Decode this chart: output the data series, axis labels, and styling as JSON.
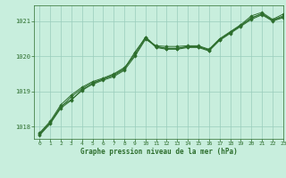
{
  "title": "Graphe pression niveau de la mer (hPa)",
  "background_color": "#c8eedd",
  "grid_color": "#99ccbb",
  "line_color": "#2d6e2d",
  "spine_color": "#2d6e2d",
  "xlim": [
    -0.5,
    23
  ],
  "ylim": [
    1017.65,
    1021.45
  ],
  "yticks": [
    1018,
    1019,
    1020,
    1021
  ],
  "xticks": [
    0,
    1,
    2,
    3,
    4,
    5,
    6,
    7,
    8,
    9,
    10,
    11,
    12,
    13,
    14,
    15,
    16,
    17,
    18,
    19,
    20,
    21,
    22,
    23
  ],
  "series": [
    [
      1017.78,
      1018.12,
      1018.57,
      1018.77,
      1019.02,
      1019.22,
      1019.35,
      1019.45,
      1019.63,
      1020.08,
      1020.55,
      1020.28,
      1020.23,
      1020.23,
      1020.28,
      1020.28,
      1020.18,
      1020.48,
      1020.68,
      1020.88,
      1021.08,
      1021.22,
      1021.02,
      1021.12
    ],
    [
      1017.82,
      1018.15,
      1018.62,
      1018.9,
      1019.12,
      1019.28,
      1019.38,
      1019.5,
      1019.68,
      1020.02,
      1020.52,
      1020.25,
      1020.2,
      1020.2,
      1020.25,
      1020.25,
      1020.15,
      1020.45,
      1020.65,
      1020.85,
      1021.05,
      1021.18,
      1021.0,
      1021.1
    ],
    [
      1017.75,
      1018.08,
      1018.52,
      1018.75,
      1019.05,
      1019.2,
      1019.32,
      1019.42,
      1019.6,
      1020.0,
      1020.48,
      1020.3,
      1020.28,
      1020.28,
      1020.3,
      1020.3,
      1020.2,
      1020.5,
      1020.7,
      1020.9,
      1021.15,
      1021.25,
      1021.05,
      1021.2
    ],
    [
      1017.8,
      1018.1,
      1018.55,
      1018.85,
      1019.08,
      1019.25,
      1019.35,
      1019.48,
      1019.65,
      1020.12,
      1020.53,
      1020.27,
      1020.22,
      1020.22,
      1020.27,
      1020.27,
      1020.17,
      1020.47,
      1020.67,
      1020.87,
      1021.1,
      1021.2,
      1021.03,
      1021.15
    ]
  ]
}
